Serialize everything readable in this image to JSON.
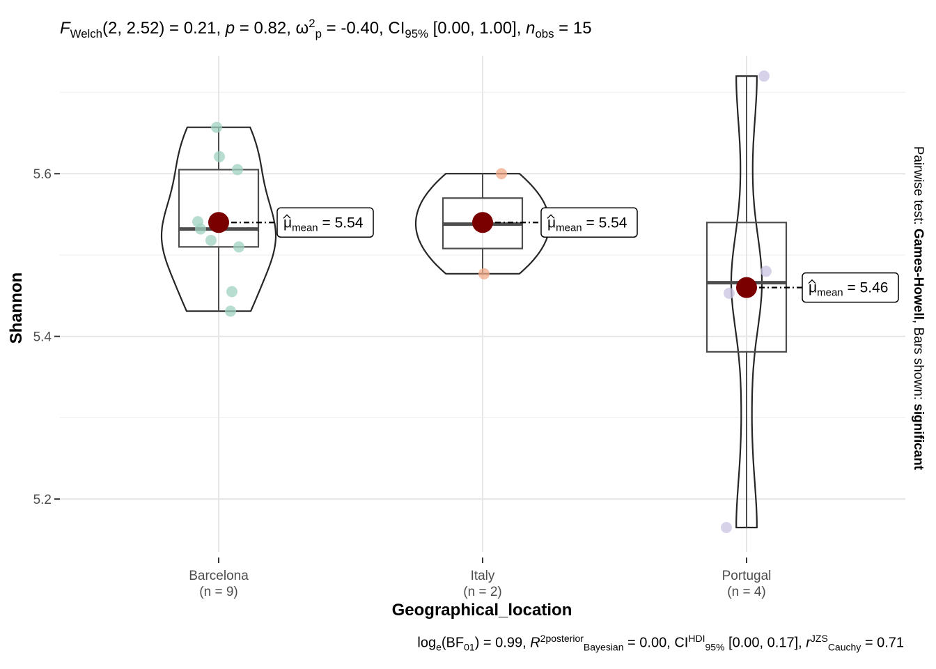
{
  "subtitle": {
    "stat_name": "F",
    "stat_sub": "Welch",
    "stat_args": "(2, 2.52) = 0.21, ",
    "p_name": "p",
    "p_val": " = 0.82, ",
    "effect_name": "ω",
    "effect_sup": "2",
    "effect_sub": "p",
    "effect_val": " = -0.40, CI",
    "ci_sub": "95%",
    "ci_val": " [0.00, 1.00], ",
    "n_name": "n",
    "n_sub": "obs",
    "n_val": " = 15"
  },
  "caption": {
    "log": "log",
    "log_sub": "e",
    "bf_open": "(BF",
    "bf_sub": "01",
    "bf_val": ") = 0.99, ",
    "r_name": "R",
    "r_sup": "2",
    "r_sup2": "posterior",
    "r_sub": "Bayesian",
    "r_val": " = 0.00, CI",
    "ci_sup": "HDI",
    "ci_sub": "95%",
    "ci_val": " [0.00, 0.17], ",
    "rc_name": "r",
    "rc_sup": "JZS",
    "rc_sub": "Cauchy",
    "rc_val": " = 0.71"
  },
  "side_note": {
    "prefix": "Pairwise test: ",
    "test": "Games-Howell",
    "middle": ", Bars shown: ",
    "bars": "significant"
  },
  "chart_data": {
    "type": "violin-box",
    "xlabel": "Geographical_location",
    "ylabel": "Shannon",
    "ylim": [
      5.135,
      5.745
    ],
    "yticks": [
      5.2,
      5.4,
      5.6
    ],
    "ytick_labels": [
      "5.2",
      "5.4",
      "5.6"
    ],
    "grid": true,
    "groups": [
      {
        "name": "Barcelona",
        "n_label": "(n = 9)",
        "color": "#9fd2c0",
        "points": [
          5.657,
          5.621,
          5.605,
          5.541,
          5.532,
          5.518,
          5.51,
          5.455,
          5.431
        ],
        "box": {
          "q1": 5.51,
          "median": 5.532,
          "q3": 5.605,
          "whisker_low": 5.431,
          "whisker_high": 5.657
        },
        "mean": 5.54,
        "mean_label": "5.54"
      },
      {
        "name": "Italy",
        "n_label": "(n = 2)",
        "color": "#f0a987",
        "points": [
          5.6,
          5.477
        ],
        "box": {
          "q1": 5.508,
          "median": 5.538,
          "q3": 5.57,
          "whisker_low": 5.477,
          "whisker_high": 5.6
        },
        "mean": 5.54,
        "mean_label": "5.54"
      },
      {
        "name": "Portugal",
        "n_label": "(n = 4)",
        "color": "#c9c3e3",
        "points": [
          5.72,
          5.48,
          5.453,
          5.165
        ],
        "box": {
          "q1": 5.381,
          "median": 5.466,
          "q3": 5.54,
          "whisker_low": 5.165,
          "whisker_high": 5.72
        },
        "mean": 5.46,
        "mean_label": "5.46"
      }
    ],
    "mean_point_color": "#7a0000",
    "mean_label_prefix": "μ",
    "mean_label_sub": "mean",
    "mean_label_eq": " = "
  }
}
